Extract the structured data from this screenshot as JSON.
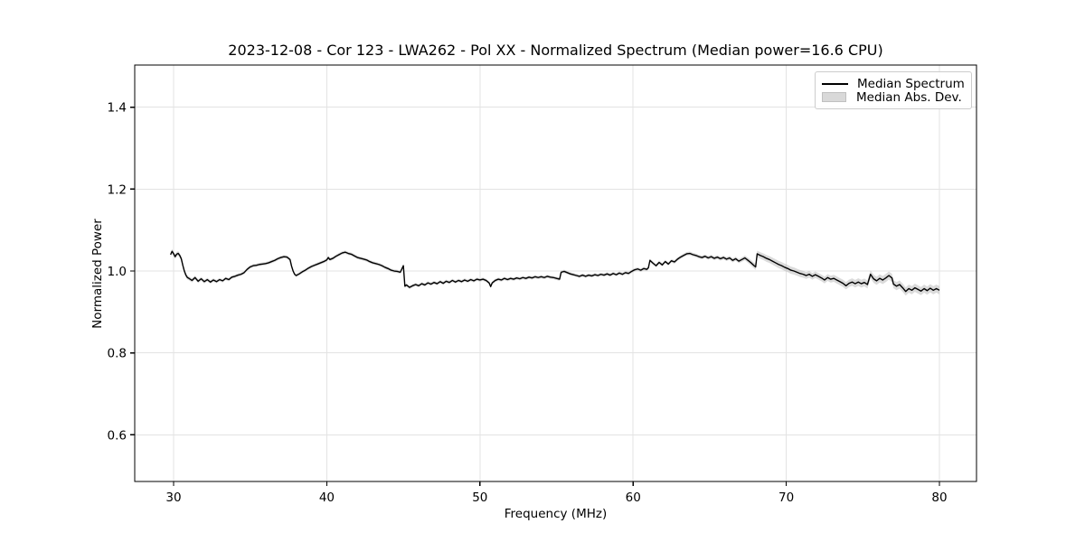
{
  "figure": {
    "title": "2023-12-08 - Cor 123 - LWA262 - Pol XX - Normalized Spectrum (Median power=16.6 CPU)",
    "xlabel": "Frequency (MHz)",
    "ylabel": "Normalized Power",
    "background_color": "#ffffff",
    "grid_color": "#e3e3e3",
    "spine_color": "#000000",
    "line_color": "#000000",
    "band_color": "#bdbdbd"
  },
  "legend": {
    "entries": [
      {
        "label": "Median Spectrum",
        "swatch": "line-swatch",
        "color": "#000000"
      },
      {
        "label": "Median Abs. Dev.",
        "swatch": "patch-swatch",
        "color": "#d9d9d9"
      }
    ]
  },
  "chart_data": {
    "type": "line",
    "title": "2023-12-08 - Cor 123 - LWA262 - Pol XX - Normalized Spectrum (Median power=16.6 CPU)",
    "xlabel": "Frequency (MHz)",
    "ylabel": "Normalized Power",
    "xlim": [
      27.46,
      82.42
    ],
    "ylim": [
      0.486,
      1.503
    ],
    "xticks": [
      30,
      40,
      50,
      60,
      70,
      80
    ],
    "yticks": [
      0.6,
      0.8,
      1.0,
      1.2,
      1.4
    ],
    "grid": true,
    "legend_position": "upper right",
    "series": [
      {
        "name": "Median Spectrum",
        "type": "line",
        "color": "#000000",
        "points": [
          [
            29.8,
            1.04
          ],
          [
            29.9,
            1.048
          ],
          [
            30.0,
            1.042
          ],
          [
            30.1,
            1.035
          ],
          [
            30.2,
            1.041
          ],
          [
            30.3,
            1.043
          ],
          [
            30.4,
            1.038
          ],
          [
            30.5,
            1.03
          ],
          [
            30.6,
            1.014
          ],
          [
            30.7,
            1.0
          ],
          [
            30.8,
            0.99
          ],
          [
            30.9,
            0.984
          ],
          [
            31.0,
            0.982
          ],
          [
            31.2,
            0.977
          ],
          [
            31.4,
            0.984
          ],
          [
            31.6,
            0.975
          ],
          [
            31.8,
            0.981
          ],
          [
            32.0,
            0.974
          ],
          [
            32.2,
            0.979
          ],
          [
            32.4,
            0.973
          ],
          [
            32.6,
            0.978
          ],
          [
            32.8,
            0.974
          ],
          [
            33.0,
            0.979
          ],
          [
            33.2,
            0.976
          ],
          [
            33.4,
            0.982
          ],
          [
            33.6,
            0.979
          ],
          [
            33.8,
            0.985
          ],
          [
            34.0,
            0.987
          ],
          [
            34.2,
            0.99
          ],
          [
            34.4,
            0.992
          ],
          [
            34.6,
            0.996
          ],
          [
            34.8,
            1.004
          ],
          [
            35.0,
            1.01
          ],
          [
            35.2,
            1.013
          ],
          [
            35.4,
            1.014
          ],
          [
            35.6,
            1.016
          ],
          [
            35.8,
            1.017
          ],
          [
            36.0,
            1.018
          ],
          [
            36.2,
            1.02
          ],
          [
            36.4,
            1.023
          ],
          [
            36.6,
            1.026
          ],
          [
            36.8,
            1.03
          ],
          [
            37.0,
            1.033
          ],
          [
            37.2,
            1.035
          ],
          [
            37.4,
            1.034
          ],
          [
            37.6,
            1.028
          ],
          [
            37.7,
            1.012
          ],
          [
            37.8,
            1.0
          ],
          [
            37.9,
            0.992
          ],
          [
            38.0,
            0.989
          ],
          [
            38.2,
            0.993
          ],
          [
            38.4,
            0.998
          ],
          [
            38.6,
            1.002
          ],
          [
            38.8,
            1.007
          ],
          [
            39.0,
            1.011
          ],
          [
            39.2,
            1.014
          ],
          [
            39.4,
            1.017
          ],
          [
            39.6,
            1.02
          ],
          [
            39.8,
            1.023
          ],
          [
            40.0,
            1.027
          ],
          [
            40.1,
            1.033
          ],
          [
            40.2,
            1.028
          ],
          [
            40.4,
            1.031
          ],
          [
            40.6,
            1.036
          ],
          [
            40.8,
            1.04
          ],
          [
            41.0,
            1.044
          ],
          [
            41.2,
            1.046
          ],
          [
            41.4,
            1.043
          ],
          [
            41.6,
            1.041
          ],
          [
            41.8,
            1.037
          ],
          [
            42.0,
            1.033
          ],
          [
            42.2,
            1.031
          ],
          [
            42.4,
            1.029
          ],
          [
            42.6,
            1.027
          ],
          [
            42.8,
            1.023
          ],
          [
            43.0,
            1.02
          ],
          [
            43.2,
            1.018
          ],
          [
            43.4,
            1.016
          ],
          [
            43.6,
            1.013
          ],
          [
            43.8,
            1.009
          ],
          [
            44.0,
            1.006
          ],
          [
            44.2,
            1.002
          ],
          [
            44.4,
            1.0
          ],
          [
            44.6,
            0.999
          ],
          [
            44.8,
            0.997
          ],
          [
            45.0,
            1.013
          ],
          [
            45.1,
            0.963
          ],
          [
            45.2,
            0.966
          ],
          [
            45.4,
            0.96
          ],
          [
            45.6,
            0.964
          ],
          [
            45.8,
            0.967
          ],
          [
            46.0,
            0.964
          ],
          [
            46.2,
            0.969
          ],
          [
            46.4,
            0.966
          ],
          [
            46.6,
            0.971
          ],
          [
            46.8,
            0.968
          ],
          [
            47.0,
            0.972
          ],
          [
            47.2,
            0.969
          ],
          [
            47.4,
            0.974
          ],
          [
            47.6,
            0.97
          ],
          [
            47.8,
            0.975
          ],
          [
            48.0,
            0.972
          ],
          [
            48.2,
            0.977
          ],
          [
            48.4,
            0.973
          ],
          [
            48.6,
            0.977
          ],
          [
            48.8,
            0.974
          ],
          [
            49.0,
            0.978
          ],
          [
            49.2,
            0.975
          ],
          [
            49.4,
            0.979
          ],
          [
            49.6,
            0.976
          ],
          [
            49.8,
            0.98
          ],
          [
            50.0,
            0.978
          ],
          [
            50.2,
            0.98
          ],
          [
            50.4,
            0.977
          ],
          [
            50.6,
            0.971
          ],
          [
            50.7,
            0.962
          ],
          [
            50.8,
            0.971
          ],
          [
            51.0,
            0.977
          ],
          [
            51.2,
            0.98
          ],
          [
            51.4,
            0.978
          ],
          [
            51.6,
            0.982
          ],
          [
            51.8,
            0.979
          ],
          [
            52.0,
            0.982
          ],
          [
            52.2,
            0.98
          ],
          [
            52.4,
            0.983
          ],
          [
            52.6,
            0.981
          ],
          [
            52.8,
            0.984
          ],
          [
            53.0,
            0.982
          ],
          [
            53.2,
            0.985
          ],
          [
            53.4,
            0.983
          ],
          [
            53.6,
            0.986
          ],
          [
            53.8,
            0.984
          ],
          [
            54.0,
            0.986
          ],
          [
            54.2,
            0.984
          ],
          [
            54.4,
            0.987
          ],
          [
            54.6,
            0.985
          ],
          [
            54.8,
            0.984
          ],
          [
            55.0,
            0.982
          ],
          [
            55.2,
            0.98
          ],
          [
            55.3,
            0.997
          ],
          [
            55.5,
            0.999
          ],
          [
            55.7,
            0.996
          ],
          [
            55.9,
            0.993
          ],
          [
            56.1,
            0.991
          ],
          [
            56.3,
            0.989
          ],
          [
            56.5,
            0.987
          ],
          [
            56.7,
            0.99
          ],
          [
            56.9,
            0.987
          ],
          [
            57.1,
            0.99
          ],
          [
            57.3,
            0.988
          ],
          [
            57.5,
            0.991
          ],
          [
            57.7,
            0.989
          ],
          [
            57.9,
            0.992
          ],
          [
            58.1,
            0.99
          ],
          [
            58.3,
            0.993
          ],
          [
            58.5,
            0.99
          ],
          [
            58.7,
            0.994
          ],
          [
            58.9,
            0.991
          ],
          [
            59.1,
            0.995
          ],
          [
            59.3,
            0.992
          ],
          [
            59.5,
            0.996
          ],
          [
            59.7,
            0.994
          ],
          [
            59.9,
            0.999
          ],
          [
            60.1,
            1.003
          ],
          [
            60.3,
            1.005
          ],
          [
            60.5,
            1.002
          ],
          [
            60.7,
            1.006
          ],
          [
            60.9,
            1.004
          ],
          [
            61.0,
            1.008
          ],
          [
            61.1,
            1.026
          ],
          [
            61.3,
            1.019
          ],
          [
            61.5,
            1.013
          ],
          [
            61.7,
            1.021
          ],
          [
            61.9,
            1.015
          ],
          [
            62.1,
            1.023
          ],
          [
            62.3,
            1.017
          ],
          [
            62.5,
            1.025
          ],
          [
            62.7,
            1.022
          ],
          [
            62.9,
            1.029
          ],
          [
            63.1,
            1.034
          ],
          [
            63.3,
            1.038
          ],
          [
            63.5,
            1.042
          ],
          [
            63.7,
            1.043
          ],
          [
            63.9,
            1.04
          ],
          [
            64.1,
            1.038
          ],
          [
            64.3,
            1.035
          ],
          [
            64.5,
            1.033
          ],
          [
            64.7,
            1.036
          ],
          [
            64.9,
            1.032
          ],
          [
            65.1,
            1.035
          ],
          [
            65.3,
            1.031
          ],
          [
            65.5,
            1.034
          ],
          [
            65.7,
            1.03
          ],
          [
            65.9,
            1.033
          ],
          [
            66.1,
            1.029
          ],
          [
            66.3,
            1.032
          ],
          [
            66.5,
            1.026
          ],
          [
            66.7,
            1.03
          ],
          [
            66.9,
            1.024
          ],
          [
            67.1,
            1.028
          ],
          [
            67.3,
            1.032
          ],
          [
            67.5,
            1.026
          ],
          [
            67.7,
            1.02
          ],
          [
            67.9,
            1.013
          ],
          [
            68.0,
            1.01
          ],
          [
            68.1,
            1.042
          ],
          [
            68.3,
            1.038
          ],
          [
            68.5,
            1.035
          ],
          [
            68.7,
            1.031
          ],
          [
            68.9,
            1.028
          ],
          [
            69.1,
            1.024
          ],
          [
            69.3,
            1.02
          ],
          [
            69.5,
            1.016
          ],
          [
            69.7,
            1.013
          ],
          [
            69.9,
            1.009
          ],
          [
            70.1,
            1.006
          ],
          [
            70.3,
            1.002
          ],
          [
            70.5,
            1.0
          ],
          [
            70.7,
            0.997
          ],
          [
            70.9,
            0.994
          ],
          [
            71.1,
            0.992
          ],
          [
            71.3,
            0.989
          ],
          [
            71.5,
            0.992
          ],
          [
            71.7,
            0.987
          ],
          [
            71.9,
            0.991
          ],
          [
            72.1,
            0.987
          ],
          [
            72.3,
            0.983
          ],
          [
            72.5,
            0.978
          ],
          [
            72.7,
            0.984
          ],
          [
            72.9,
            0.98
          ],
          [
            73.1,
            0.982
          ],
          [
            73.3,
            0.978
          ],
          [
            73.5,
            0.974
          ],
          [
            73.7,
            0.97
          ],
          [
            73.9,
            0.964
          ],
          [
            74.1,
            0.97
          ],
          [
            74.3,
            0.973
          ],
          [
            74.5,
            0.969
          ],
          [
            74.7,
            0.973
          ],
          [
            74.9,
            0.969
          ],
          [
            75.1,
            0.972
          ],
          [
            75.3,
            0.967
          ],
          [
            75.5,
            0.992
          ],
          [
            75.7,
            0.981
          ],
          [
            75.9,
            0.976
          ],
          [
            76.1,
            0.982
          ],
          [
            76.3,
            0.978
          ],
          [
            76.5,
            0.983
          ],
          [
            76.7,
            0.989
          ],
          [
            76.9,
            0.983
          ],
          [
            77.0,
            0.968
          ],
          [
            77.2,
            0.963
          ],
          [
            77.4,
            0.967
          ],
          [
            77.6,
            0.959
          ],
          [
            77.8,
            0.95
          ],
          [
            78.0,
            0.957
          ],
          [
            78.2,
            0.953
          ],
          [
            78.4,
            0.959
          ],
          [
            78.6,
            0.955
          ],
          [
            78.8,
            0.951
          ],
          [
            79.0,
            0.957
          ],
          [
            79.2,
            0.952
          ],
          [
            79.4,
            0.958
          ],
          [
            79.6,
            0.953
          ],
          [
            79.8,
            0.957
          ],
          [
            80.0,
            0.953
          ]
        ]
      },
      {
        "name": "Median Abs. Dev.",
        "type": "band",
        "color": "#bdbdbd",
        "opacity": 0.55,
        "half_width_points": [
          [
            29.8,
            0.006
          ],
          [
            31.0,
            0.005
          ],
          [
            33.0,
            0.004
          ],
          [
            44.0,
            0.004
          ],
          [
            46.0,
            0.004
          ],
          [
            58.0,
            0.004
          ],
          [
            64.0,
            0.0045
          ],
          [
            67.0,
            0.005
          ],
          [
            68.2,
            0.008
          ],
          [
            70.0,
            0.009
          ],
          [
            72.0,
            0.008
          ],
          [
            74.0,
            0.009
          ],
          [
            76.0,
            0.01
          ],
          [
            78.0,
            0.01
          ],
          [
            80.0,
            0.01
          ]
        ]
      }
    ]
  }
}
